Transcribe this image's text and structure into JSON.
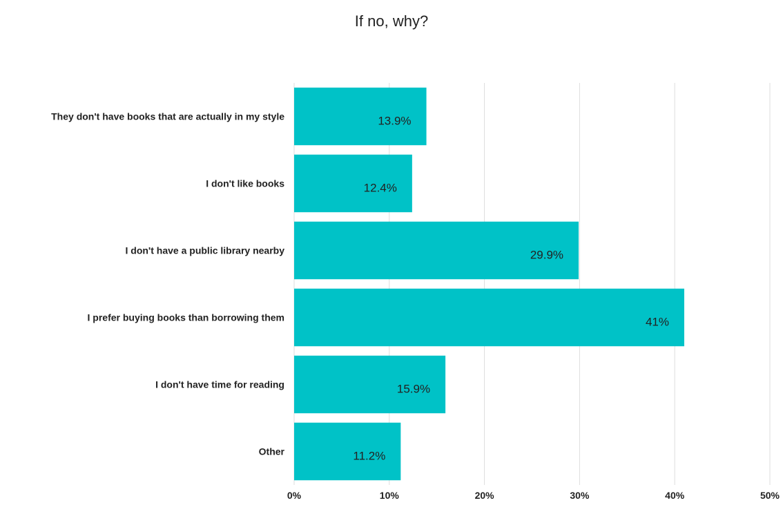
{
  "chart_data": {
    "type": "bar",
    "orientation": "horizontal",
    "title": "If no, why?",
    "xlabel": "",
    "ylabel": "",
    "categories": [
      "They don't have books that are actually in my style",
      "I don't like books",
      "I don't have a public library nearby",
      "I prefer buying books than borrowing them",
      "I don't have time for reading",
      "Other"
    ],
    "values": [
      13.9,
      12.4,
      29.9,
      41,
      15.9,
      11.2
    ],
    "data_labels": [
      "13.9%",
      "12.4%",
      "29.9%",
      "41%",
      "15.9%",
      "11.2%"
    ],
    "xlim": [
      0,
      50
    ],
    "x_ticks": [
      0,
      10,
      20,
      30,
      40,
      50
    ],
    "x_tick_labels": [
      "0%",
      "10%",
      "20%",
      "30%",
      "40%",
      "50%"
    ],
    "grid": true,
    "legend": "none",
    "colors": {
      "bar": "#00c2c7",
      "grid": "#dddddd",
      "text": "#222222"
    }
  }
}
